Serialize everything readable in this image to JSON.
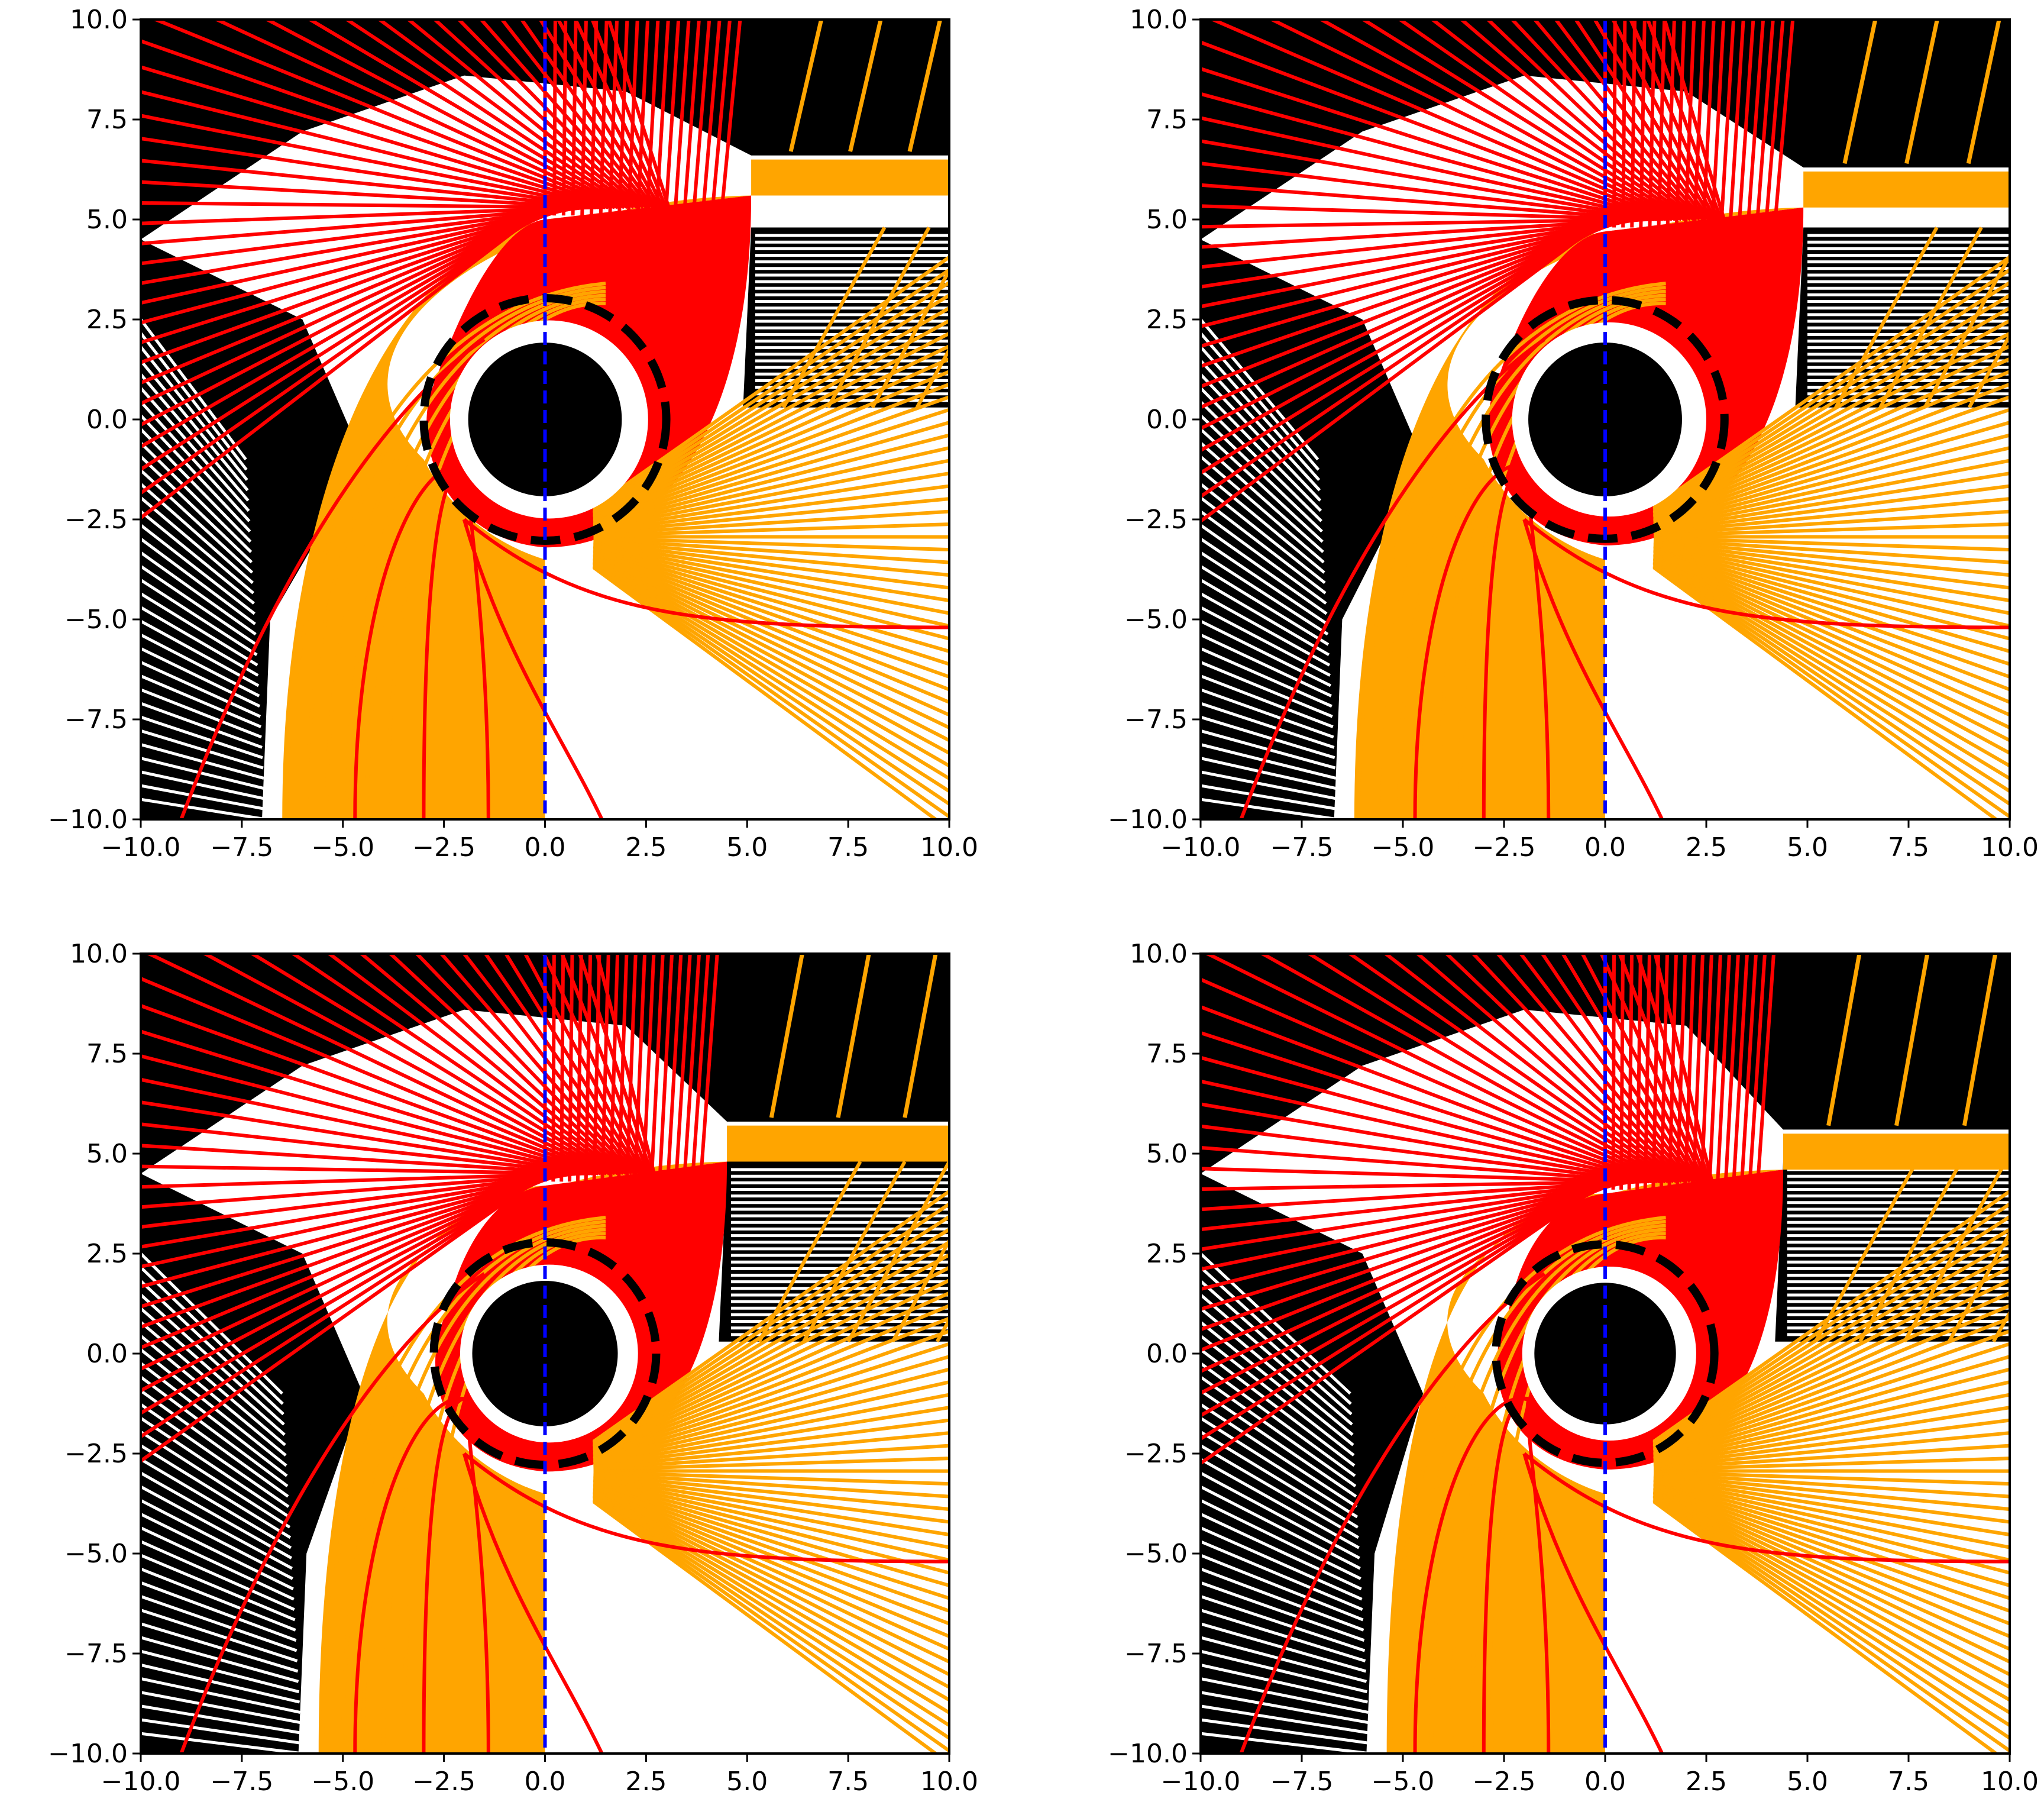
{
  "figure": {
    "layout": "2x2 grid of panels",
    "background": "#ffffff"
  },
  "colors": {
    "escaping_rays": "#ff0000",
    "captured_rays": "#ffa500",
    "background_rays": "#000000",
    "axis_line": "#0000ff",
    "horizon": "#000000",
    "photon_sphere": "#000000"
  },
  "chart_data": [
    {
      "type": "scatter",
      "panel": "top-left",
      "xlim": [
        -10,
        10
      ],
      "ylim": [
        -10,
        10
      ],
      "xticks": [
        -10.0,
        -7.5,
        -5.0,
        -2.5,
        0.0,
        2.5,
        5.0,
        7.5,
        10.0
      ],
      "yticks": [
        -10.0,
        -7.5,
        -5.0,
        -2.5,
        0.0,
        2.5,
        5.0,
        7.5,
        10.0
      ],
      "xtick_labels": [
        "−10.0",
        "−7.5",
        "−5.0",
        "−2.5",
        "0.0",
        "2.5",
        "5.0",
        "7.5",
        "10.0"
      ],
      "ytick_labels": [
        "−10.0",
        "−7.5",
        "−5.0",
        "−2.5",
        "0.0",
        "2.5",
        "5.0",
        "7.5",
        "10.0"
      ],
      "title": "",
      "xlabel": "",
      "ylabel": "",
      "grid": false,
      "black_hole_radius": 1.9,
      "dashed_circle_radius": 3.0,
      "capture_curve": {
        "x_bottom": -6.5,
        "x_right": 5.1,
        "y_top": 6.5
      },
      "vertical_dashed_line_x": 0.0
    },
    {
      "type": "scatter",
      "panel": "top-right",
      "xlim": [
        -10,
        10
      ],
      "ylim": [
        -10,
        10
      ],
      "xticks": [
        -10.0,
        -7.5,
        -5.0,
        -2.5,
        0.0,
        2.5,
        5.0,
        7.5,
        10.0
      ],
      "yticks": [
        -10.0,
        -7.5,
        -5.0,
        -2.5,
        0.0,
        2.5,
        5.0,
        7.5,
        10.0
      ],
      "xtick_labels": [
        "−10.0",
        "−7.5",
        "−5.0",
        "−2.5",
        "0.0",
        "2.5",
        "5.0",
        "7.5",
        "10.0"
      ],
      "ytick_labels": [
        "−10.0",
        "−7.5",
        "−5.0",
        "−2.5",
        "0.0",
        "2.5",
        "5.0",
        "7.5",
        "10.0"
      ],
      "title": "",
      "xlabel": "",
      "ylabel": "",
      "grid": false,
      "black_hole_radius": 1.9,
      "dashed_circle_radius": 2.95,
      "capture_curve": {
        "x_bottom": -6.2,
        "x_right": 4.9,
        "y_top": 6.2
      },
      "vertical_dashed_line_x": 0.0
    },
    {
      "type": "scatter",
      "panel": "bottom-left",
      "xlim": [
        -10,
        10
      ],
      "ylim": [
        -10,
        10
      ],
      "xticks": [
        -10.0,
        -7.5,
        -5.0,
        -2.5,
        0.0,
        2.5,
        5.0,
        7.5,
        10.0
      ],
      "yticks": [
        -10.0,
        -7.5,
        -5.0,
        -2.5,
        0.0,
        2.5,
        5.0,
        7.5,
        10.0
      ],
      "xtick_labels": [
        "−10.0",
        "−7.5",
        "−5.0",
        "−2.5",
        "0.0",
        "2.5",
        "5.0",
        "7.5",
        "10.0"
      ],
      "ytick_labels": [
        "−10.0",
        "−7.5",
        "−5.0",
        "−2.5",
        "0.0",
        "2.5",
        "5.0",
        "7.5",
        "10.0"
      ],
      "title": "",
      "xlabel": "",
      "ylabel": "",
      "grid": false,
      "black_hole_radius": 1.8,
      "dashed_circle_radius": 2.75,
      "capture_curve": {
        "x_bottom": -5.6,
        "x_right": 4.5,
        "y_top": 5.7
      },
      "vertical_dashed_line_x": 0.0
    },
    {
      "type": "scatter",
      "panel": "bottom-right",
      "xlim": [
        -10,
        10
      ],
      "ylim": [
        -10,
        10
      ],
      "xticks": [
        -10.0,
        -7.5,
        -5.0,
        -2.5,
        0.0,
        2.5,
        5.0,
        7.5,
        10.0
      ],
      "yticks": [
        -10.0,
        -7.5,
        -5.0,
        -2.5,
        0.0,
        2.5,
        5.0,
        7.5,
        10.0
      ],
      "xtick_labels": [
        "−10.0",
        "−7.5",
        "−5.0",
        "−2.5",
        "0.0",
        "2.5",
        "5.0",
        "7.5",
        "10.0"
      ],
      "ytick_labels": [
        "−10.0",
        "−7.5",
        "−5.0",
        "−2.5",
        "0.0",
        "2.5",
        "5.0",
        "7.5",
        "10.0"
      ],
      "title": "",
      "xlabel": "",
      "ylabel": "",
      "grid": false,
      "black_hole_radius": 1.75,
      "dashed_circle_radius": 2.7,
      "capture_curve": {
        "x_bottom": -5.4,
        "x_right": 4.4,
        "y_top": 5.5
      },
      "vertical_dashed_line_x": 0.0
    }
  ]
}
